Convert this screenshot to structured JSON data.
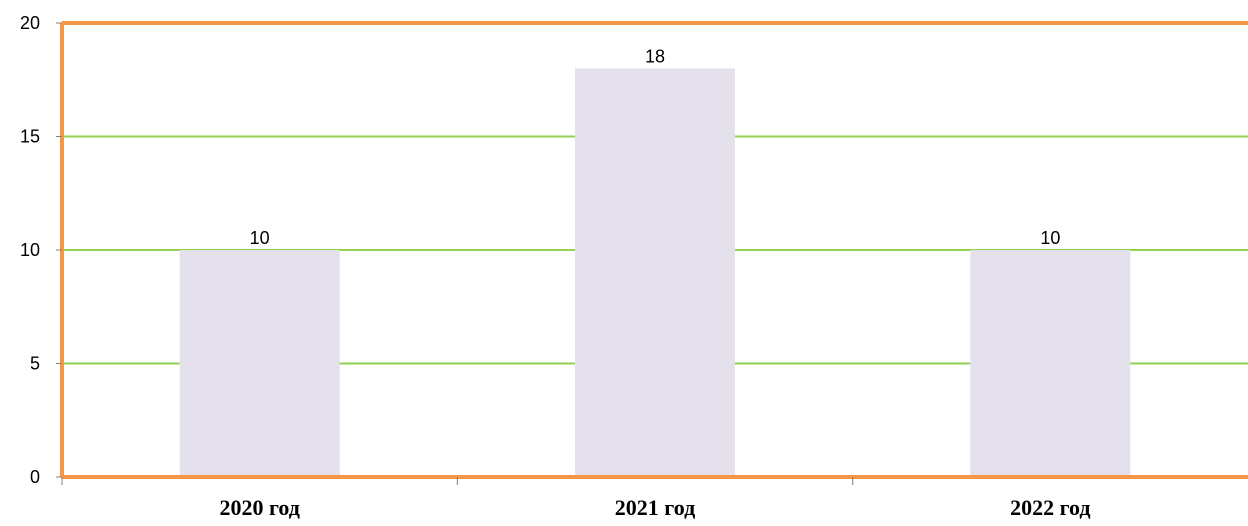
{
  "chart_data": {
    "type": "bar",
    "title": "",
    "xlabel": "",
    "ylabel": "",
    "categories": [
      "2020 год",
      "2021 год",
      "2022 год"
    ],
    "values": [
      10,
      18,
      10
    ],
    "data_labels": [
      "10",
      "18",
      "10"
    ],
    "ylim": [
      0,
      20
    ],
    "yticks": [
      0,
      5,
      10,
      15,
      20
    ],
    "ytick_labels": [
      "0",
      "5",
      "10",
      "15",
      "20"
    ],
    "grid": true,
    "legend": "none",
    "colors": {
      "bar": "#e4e0ec",
      "gridline": "#92d050",
      "border": "#f79646",
      "axis": "#808080"
    }
  }
}
